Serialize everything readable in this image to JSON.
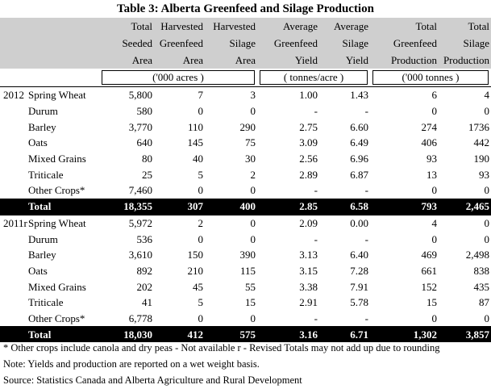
{
  "title": "Table 3:  Alberta Greenfeed and Silage Production",
  "headers": {
    "seeded": [
      "Total",
      "Seeded",
      "Area"
    ],
    "harv_green": [
      "Harvested",
      "Greenfeed",
      "Area"
    ],
    "harv_silage": [
      "Harvested",
      "Silage",
      "Area"
    ],
    "avg_green": [
      "Average",
      "Greenfeed",
      "Yield"
    ],
    "avg_silage": [
      "Average",
      "Silage",
      "Yield"
    ],
    "tot_green": [
      "Total",
      "Greenfeed",
      "Production"
    ],
    "tot_silage": [
      "Total",
      "Silage",
      "Production"
    ]
  },
  "units": {
    "area": "('000 acres )",
    "yield": "( tonnes/acre )",
    "production": "('000 tonnes )"
  },
  "blocks": [
    {
      "year": "2012",
      "rows": [
        {
          "crop": "Spring Wheat",
          "v": [
            "5,800",
            "7",
            "3",
            "1.00",
            "1.43",
            "6",
            "4"
          ]
        },
        {
          "crop": "Durum",
          "v": [
            "580",
            "0",
            "0",
            "-",
            "-",
            "0",
            "0"
          ]
        },
        {
          "crop": "Barley",
          "v": [
            "3,770",
            "110",
            "290",
            "2.75",
            "6.60",
            "274",
            "1736"
          ]
        },
        {
          "crop": "Oats",
          "v": [
            "640",
            "145",
            "75",
            "3.09",
            "6.49",
            "406",
            "442"
          ]
        },
        {
          "crop": "Mixed Grains",
          "v": [
            "80",
            "40",
            "30",
            "2.56",
            "6.96",
            "93",
            "190"
          ]
        },
        {
          "crop": "Triticale",
          "v": [
            "25",
            "5",
            "2",
            "2.89",
            "6.87",
            "13",
            "93"
          ]
        },
        {
          "crop": "Other Crops*",
          "v": [
            "7,460",
            "0",
            "0",
            "-",
            "-",
            "0",
            "0"
          ]
        }
      ],
      "total": {
        "crop": "Total",
        "v": [
          "18,355",
          "307",
          "400",
          "2.85",
          "6.58",
          "793",
          "2,465"
        ]
      }
    },
    {
      "year": "2011r",
      "rows": [
        {
          "crop": "Spring Wheat",
          "v": [
            "5,972",
            "2",
            "0",
            "2.09",
            "0.00",
            "4",
            "0"
          ]
        },
        {
          "crop": "Durum",
          "v": [
            "536",
            "0",
            "0",
            "-",
            "-",
            "0",
            "0"
          ]
        },
        {
          "crop": "Barley",
          "v": [
            "3,610",
            "150",
            "390",
            "3.13",
            "6.40",
            "469",
            "2,498"
          ]
        },
        {
          "crop": "Oats",
          "v": [
            "892",
            "210",
            "115",
            "3.15",
            "7.28",
            "661",
            "838"
          ]
        },
        {
          "crop": "Mixed Grains",
          "v": [
            "202",
            "45",
            "55",
            "3.38",
            "7.91",
            "152",
            "435"
          ]
        },
        {
          "crop": "Triticale",
          "v": [
            "41",
            "5",
            "15",
            "2.91",
            "5.78",
            "15",
            "87"
          ]
        },
        {
          "crop": "Other Crops*",
          "v": [
            "6,778",
            "0",
            "0",
            "-",
            "-",
            "0",
            "0"
          ]
        }
      ],
      "total": {
        "crop": "Total",
        "v": [
          "18,030",
          "412",
          "575",
          "3.16",
          "6.71",
          "1,302",
          "3,857"
        ]
      }
    }
  ],
  "notes": {
    "line1": "* Other crops include canola and dry peas    - Not available    r - Revised    Totals may not add up due to rounding",
    "line2": "Note:  Yields and production are reported on a wet weight basis.",
    "line3": "Source: Statistics Canada and Alberta Agriculture and Rural Development"
  }
}
